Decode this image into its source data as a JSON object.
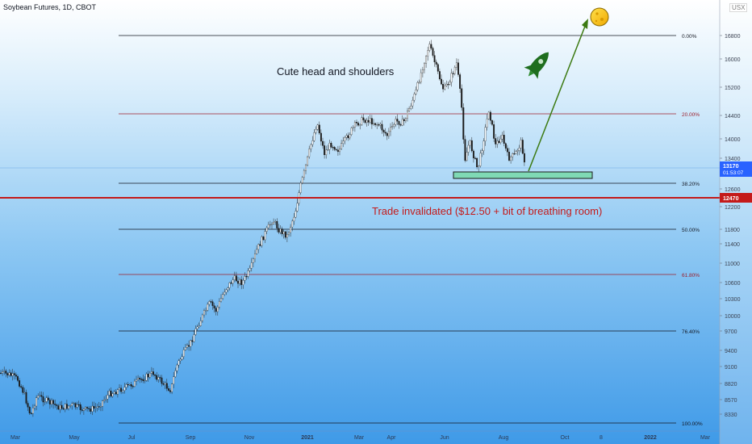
{
  "header": {
    "title": "Soybean Futures, 1D, CBOT",
    "currency": "USX"
  },
  "chart_data": {
    "type": "candlestick",
    "symbol": "Soybean Futures, 1D, CBOT",
    "y_ticks": [
      "16800",
      "16000",
      "15200",
      "14400",
      "14000",
      "13400",
      "12600",
      "12200",
      "11800",
      "11400",
      "11000",
      "10600",
      "10300",
      "10000",
      "9700",
      "9400",
      "9100",
      "8820",
      "8570",
      "8330"
    ],
    "x_ticks": [
      "Mar",
      "May",
      "Jul",
      "Sep",
      "Nov",
      "2021",
      "Mar",
      "Apr",
      "Jun",
      "Aug",
      "Oct",
      "8",
      "2022",
      "Mar"
    ],
    "fib_levels": [
      {
        "label": "0.00%",
        "color": "#131722"
      },
      {
        "label": "20.00%",
        "color": "#9c1d2b"
      },
      {
        "label": "38.20%",
        "color": "#131722"
      },
      {
        "label": "50.00%",
        "color": "#131722"
      },
      {
        "label": "61.80%",
        "color": "#9c1d2b"
      },
      {
        "label": "76.40%",
        "color": "#131722"
      },
      {
        "label": "100.00%",
        "color": "#131722"
      }
    ],
    "annotations": {
      "head_shoulders": "Cute head and shoulders",
      "invalidation": "Trade invalidated ($12.50 + bit of breathing room)"
    },
    "current_price": {
      "value": "13170",
      "countdown": "01:53:07",
      "color": "#2962ff"
    },
    "invalidation_price": {
      "value": "12470",
      "color": "#c41a1a"
    },
    "colors": {
      "accent_box": "#7fd9b5",
      "arrow": "#3c7a12",
      "rocket": "#1f6e1f",
      "moon": "#f5c518"
    }
  }
}
